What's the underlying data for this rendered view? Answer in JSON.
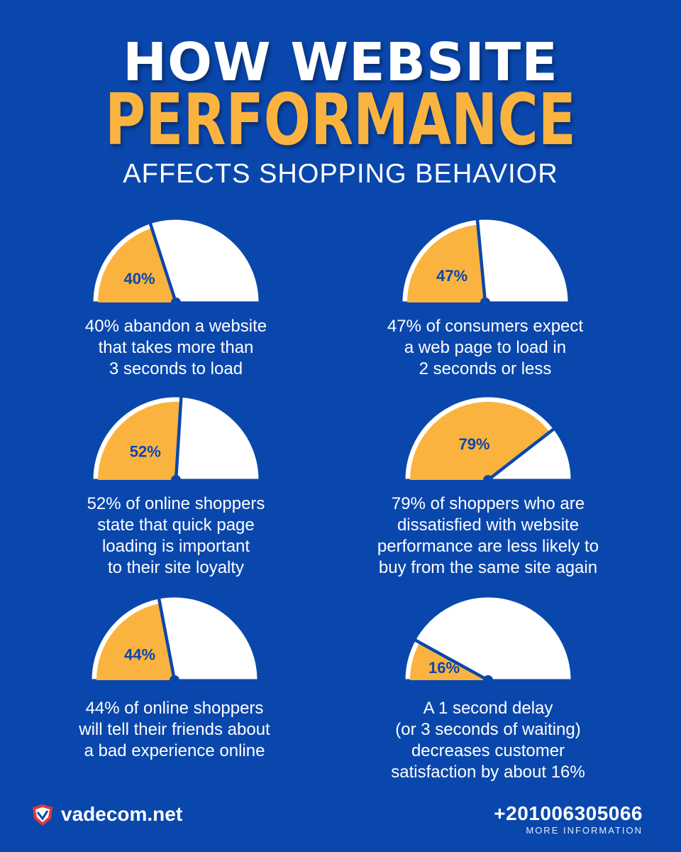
{
  "header": {
    "line1": "HOW WEBSITE",
    "line2": "PERFORMANCE",
    "line3": "AFFECTS SHOPPING BEHAVIOR"
  },
  "colors": {
    "background": "#0a47ad",
    "accent": "#fbb33f",
    "gauge_empty": "#ffffff",
    "needle": "#0a47ad"
  },
  "chart_data": [
    {
      "type": "gauge",
      "value": 40,
      "label": "40%",
      "caption": "40% abandon a website\nthat takes more than\n3 seconds to load"
    },
    {
      "type": "gauge",
      "value": 47,
      "label": "47%",
      "caption": "47% of consumers expect\na web page to load in\n2 seconds or less"
    },
    {
      "type": "gauge",
      "value": 52,
      "label": "52%",
      "caption": "52% of online shoppers\nstate that quick page\nloading is important\nto their site loyalty"
    },
    {
      "type": "gauge",
      "value": 79,
      "label": "79%",
      "caption": "79% of shoppers who are\ndissatisfied with website\nperformance are less likely to\nbuy from the same site again"
    },
    {
      "type": "gauge",
      "value": 44,
      "label": "44%",
      "caption": "44% of online shoppers\nwill tell their friends about\na bad experience online"
    },
    {
      "type": "gauge",
      "value": 16,
      "label": "16%",
      "caption": "A 1 second delay\n(or 3 seconds of waiting)\ndecreases customer\nsatisfaction by about 16%"
    }
  ],
  "footer": {
    "site": "vadecom.net",
    "phone": "+201006305066",
    "more_info": "MORE INFORMATION",
    "logo_icon": "vadecom-logo-icon"
  }
}
